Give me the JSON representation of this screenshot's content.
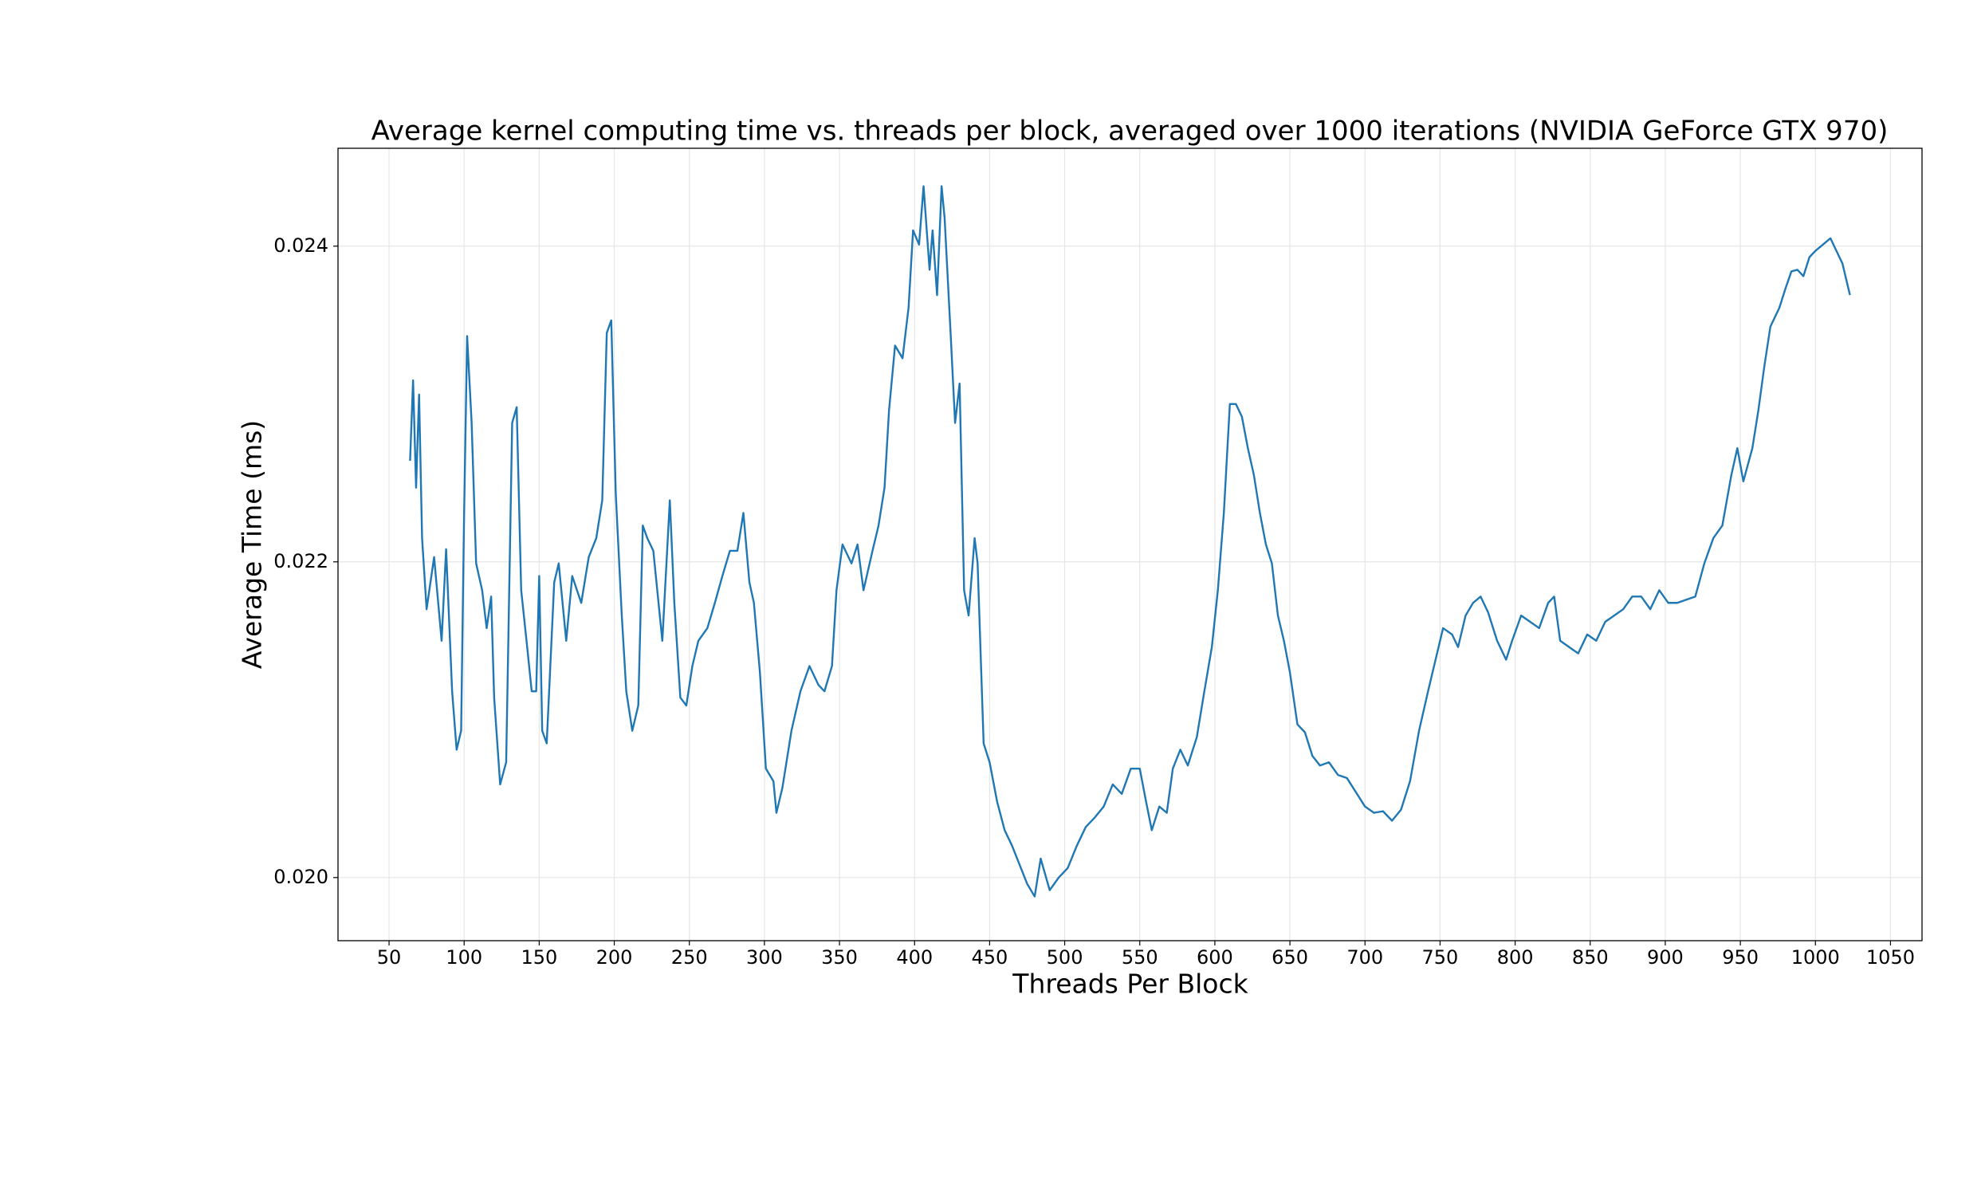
{
  "chart_data": {
    "type": "line",
    "title": "Average kernel computing time vs. threads per block, averaged over 1000 iterations (NVIDIA GeForce GTX 970)",
    "x_label": "Threads Per Block",
    "y_label": "Average Time (ms)",
    "color": "#1f77b4",
    "grid": true,
    "xlim": [
      16,
      1071
    ],
    "ylim": [
      0.0196,
      0.02462
    ],
    "xticks": [
      50,
      100,
      150,
      200,
      250,
      300,
      350,
      400,
      450,
      500,
      550,
      600,
      650,
      700,
      750,
      800,
      850,
      900,
      950,
      1000,
      1050
    ],
    "yticks": [
      {
        "value": 0.02,
        "label": "0.020"
      },
      {
        "value": 0.022,
        "label": "0.022"
      },
      {
        "value": 0.024,
        "label": "0.024"
      }
    ],
    "x": [
      64,
      66,
      68,
      70,
      72,
      75,
      80,
      85,
      88,
      92,
      95,
      98,
      100,
      102,
      105,
      108,
      112,
      115,
      118,
      120,
      124,
      128,
      132,
      135,
      138,
      142,
      145,
      148,
      150,
      152,
      155,
      160,
      163,
      168,
      172,
      178,
      183,
      188,
      192,
      195,
      198,
      201,
      205,
      208,
      212,
      216,
      219,
      222,
      226,
      232,
      237,
      240,
      244,
      248,
      252,
      256,
      262,
      267,
      272,
      277,
      282,
      286,
      290,
      293,
      297,
      301,
      306,
      308,
      312,
      318,
      324,
      330,
      336,
      340,
      345,
      348,
      352,
      358,
      362,
      366,
      372,
      376,
      380,
      383,
      387,
      392,
      396,
      399,
      403,
      406,
      410,
      412,
      415,
      418,
      420,
      424,
      427,
      430,
      433,
      436,
      440,
      442,
      446,
      450,
      455,
      460,
      465,
      470,
      475,
      480,
      484,
      490,
      496,
      502,
      508,
      514,
      520,
      526,
      532,
      538,
      544,
      550,
      554,
      558,
      563,
      568,
      572,
      577,
      582,
      588,
      593,
      598,
      602,
      606,
      610,
      614,
      618,
      622,
      626,
      630,
      634,
      638,
      642,
      646,
      650,
      655,
      660,
      665,
      670,
      676,
      682,
      688,
      694,
      700,
      706,
      712,
      718,
      724,
      730,
      736,
      742,
      748,
      752,
      758,
      762,
      767,
      772,
      777,
      782,
      788,
      794,
      798,
      804,
      810,
      816,
      822,
      826,
      830,
      836,
      842,
      848,
      854,
      860,
      866,
      872,
      878,
      884,
      890,
      896,
      902,
      908,
      914,
      920,
      926,
      932,
      938,
      944,
      948,
      952,
      958,
      962,
      966,
      970,
      976,
      980,
      984,
      988,
      992,
      996,
      1000,
      1005,
      1010,
      1014,
      1018,
      1023
    ],
    "values": [
      0.02264,
      0.02315,
      0.02247,
      0.02306,
      0.02215,
      0.0217,
      0.02203,
      0.0215,
      0.02208,
      0.02118,
      0.02081,
      0.02093,
      0.02231,
      0.02343,
      0.02288,
      0.02199,
      0.02182,
      0.02158,
      0.02178,
      0.02114,
      0.02059,
      0.02073,
      0.02288,
      0.02298,
      0.02182,
      0.02146,
      0.02118,
      0.02118,
      0.02191,
      0.02093,
      0.02085,
      0.02187,
      0.02199,
      0.0215,
      0.02191,
      0.02174,
      0.02203,
      0.02215,
      0.02239,
      0.02345,
      0.02353,
      0.02243,
      0.02166,
      0.02118,
      0.02093,
      0.02109,
      0.02223,
      0.02215,
      0.02207,
      0.0215,
      0.02239,
      0.02174,
      0.02114,
      0.02109,
      0.02134,
      0.0215,
      0.02158,
      0.02174,
      0.02191,
      0.02207,
      0.02207,
      0.02231,
      0.02187,
      0.02174,
      0.0213,
      0.02069,
      0.02061,
      0.02041,
      0.02057,
      0.02093,
      0.02118,
      0.02134,
      0.02122,
      0.02118,
      0.02134,
      0.02182,
      0.02211,
      0.02199,
      0.02211,
      0.02182,
      0.02207,
      0.02223,
      0.02247,
      0.02296,
      0.02337,
      0.02329,
      0.02361,
      0.0241,
      0.02401,
      0.02438,
      0.02385,
      0.0241,
      0.02369,
      0.02438,
      0.02418,
      0.02345,
      0.02288,
      0.02313,
      0.02182,
      0.02166,
      0.02215,
      0.02199,
      0.02085,
      0.02073,
      0.02048,
      0.0203,
      0.0202,
      0.02008,
      0.01996,
      0.01988,
      0.02012,
      0.01992,
      0.02,
      0.02006,
      0.0202,
      0.02032,
      0.02038,
      0.02045,
      0.02059,
      0.02053,
      0.02069,
      0.02069,
      0.02049,
      0.0203,
      0.02045,
      0.02041,
      0.02069,
      0.02081,
      0.02071,
      0.02089,
      0.02118,
      0.02146,
      0.02182,
      0.02231,
      0.023,
      0.023,
      0.02292,
      0.02272,
      0.02255,
      0.02231,
      0.02211,
      0.02199,
      0.02166,
      0.0215,
      0.0213,
      0.02097,
      0.02092,
      0.02077,
      0.02071,
      0.02073,
      0.02065,
      0.02063,
      0.02054,
      0.02045,
      0.02041,
      0.02042,
      0.02036,
      0.02043,
      0.02061,
      0.02093,
      0.02118,
      0.02142,
      0.02158,
      0.02154,
      0.02146,
      0.02166,
      0.02174,
      0.02178,
      0.02168,
      0.0215,
      0.02138,
      0.0215,
      0.02166,
      0.02162,
      0.02158,
      0.02174,
      0.02178,
      0.0215,
      0.02146,
      0.02142,
      0.02154,
      0.0215,
      0.02162,
      0.02166,
      0.0217,
      0.02178,
      0.02178,
      0.0217,
      0.02182,
      0.02174,
      0.02174,
      0.02176,
      0.02178,
      0.02199,
      0.02215,
      0.02223,
      0.02255,
      0.02272,
      0.02251,
      0.02272,
      0.02296,
      0.02324,
      0.02349,
      0.02361,
      0.02373,
      0.02384,
      0.02385,
      0.02381,
      0.02393,
      0.02397,
      0.02401,
      0.02405,
      0.02397,
      0.02389,
      0.02369
    ]
  }
}
